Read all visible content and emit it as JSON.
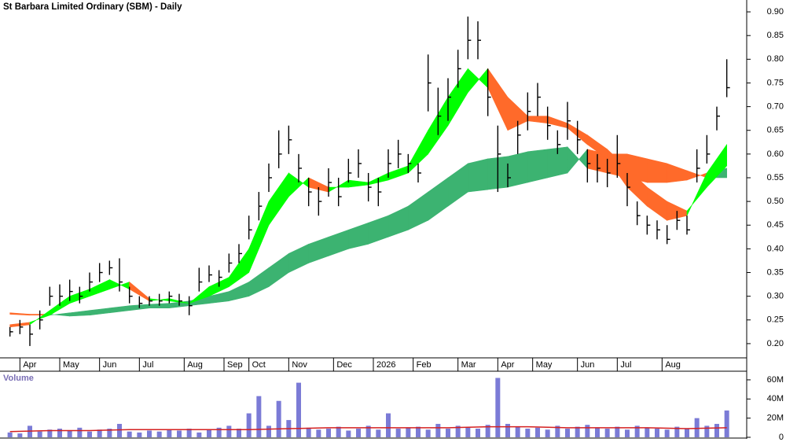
{
  "chart_data": [
    {
      "type": "ohlc",
      "title": "St Barbara Limited Ordinary (SBM) - Daily",
      "color": "#000000",
      "x": [
        0,
        1,
        2,
        3,
        4,
        5,
        6,
        7,
        8,
        9,
        10,
        11,
        12,
        13,
        14,
        15,
        16,
        17,
        18,
        19,
        20,
        21,
        22,
        23,
        24,
        25,
        26,
        27,
        28,
        29,
        30,
        31,
        32,
        33,
        34,
        35,
        36,
        37,
        38,
        39,
        40,
        41,
        42,
        43,
        44,
        45,
        46,
        47,
        48,
        49,
        50,
        51,
        52,
        53,
        54,
        55,
        56,
        57,
        58,
        59,
        60,
        61,
        62,
        63,
        64,
        65,
        66,
        67,
        68,
        69,
        70,
        71,
        72
      ],
      "high": [
        0.235,
        0.25,
        0.24,
        0.27,
        0.32,
        0.325,
        0.335,
        0.32,
        0.35,
        0.37,
        0.375,
        0.38,
        0.32,
        0.3,
        0.3,
        0.305,
        0.31,
        0.305,
        0.3,
        0.36,
        0.365,
        0.355,
        0.39,
        0.41,
        0.47,
        0.52,
        0.58,
        0.65,
        0.66,
        0.6,
        0.55,
        0.53,
        0.57,
        0.55,
        0.59,
        0.61,
        0.56,
        0.55,
        0.61,
        0.63,
        0.6,
        0.58,
        0.81,
        0.74,
        0.76,
        0.82,
        0.89,
        0.88,
        0.78,
        0.66,
        0.58,
        0.67,
        0.73,
        0.75,
        0.7,
        0.65,
        0.71,
        0.67,
        0.61,
        0.6,
        0.59,
        0.64,
        0.56,
        0.5,
        0.47,
        0.46,
        0.45,
        0.48,
        0.47,
        0.61,
        0.64,
        0.7,
        0.8
      ],
      "low": [
        0.215,
        0.22,
        0.195,
        0.23,
        0.28,
        0.28,
        0.29,
        0.285,
        0.31,
        0.33,
        0.345,
        0.31,
        0.285,
        0.275,
        0.28,
        0.28,
        0.285,
        0.28,
        0.26,
        0.31,
        0.33,
        0.32,
        0.35,
        0.37,
        0.42,
        0.46,
        0.52,
        0.57,
        0.6,
        0.54,
        0.49,
        0.47,
        0.51,
        0.49,
        0.54,
        0.55,
        0.5,
        0.49,
        0.55,
        0.57,
        0.56,
        0.54,
        0.69,
        0.64,
        0.67,
        0.74,
        0.8,
        0.8,
        0.68,
        0.52,
        0.53,
        0.6,
        0.65,
        0.68,
        0.63,
        0.6,
        0.63,
        0.6,
        0.54,
        0.54,
        0.53,
        0.55,
        0.49,
        0.45,
        0.43,
        0.42,
        0.41,
        0.44,
        0.43,
        0.54,
        0.58,
        0.65,
        0.72
      ],
      "close": [
        0.225,
        0.235,
        0.22,
        0.25,
        0.3,
        0.3,
        0.31,
        0.3,
        0.33,
        0.35,
        0.36,
        0.33,
        0.3,
        0.285,
        0.29,
        0.29,
        0.3,
        0.29,
        0.28,
        0.33,
        0.345,
        0.34,
        0.37,
        0.39,
        0.44,
        0.49,
        0.55,
        0.6,
        0.63,
        0.57,
        0.52,
        0.5,
        0.54,
        0.51,
        0.56,
        0.58,
        0.53,
        0.52,
        0.58,
        0.6,
        0.58,
        0.56,
        0.75,
        0.68,
        0.72,
        0.78,
        0.84,
        0.84,
        0.72,
        0.6,
        0.55,
        0.64,
        0.69,
        0.72,
        0.66,
        0.62,
        0.67,
        0.63,
        0.58,
        0.57,
        0.56,
        0.58,
        0.53,
        0.47,
        0.45,
        0.44,
        0.42,
        0.46,
        0.44,
        0.57,
        0.6,
        0.68,
        0.74
      ],
      "bands": [
        {
          "up_color": "#3cb371",
          "down_color": "#ff6a2a",
          "x": [
            0,
            2,
            4,
            6,
            8,
            10,
            12,
            14,
            16,
            18,
            20,
            22,
            24,
            26,
            28,
            30,
            32,
            34,
            36,
            38,
            40,
            42,
            44,
            46,
            48,
            50,
            52,
            54,
            56,
            58,
            60,
            62,
            64,
            66,
            68,
            70,
            72
          ],
          "lead": [
            0.262,
            0.26,
            0.26,
            0.265,
            0.27,
            0.275,
            0.28,
            0.283,
            0.285,
            0.29,
            0.3,
            0.31,
            0.33,
            0.36,
            0.39,
            0.41,
            0.425,
            0.44,
            0.455,
            0.47,
            0.49,
            0.52,
            0.55,
            0.58,
            0.59,
            0.595,
            0.605,
            0.61,
            0.615,
            0.57,
            0.56,
            0.55,
            0.54,
            0.54,
            0.545,
            0.56,
            0.57
          ],
          "lag": [
            0.265,
            0.262,
            0.262,
            0.258,
            0.26,
            0.265,
            0.27,
            0.275,
            0.275,
            0.28,
            0.285,
            0.29,
            0.3,
            0.32,
            0.35,
            0.37,
            0.385,
            0.4,
            0.41,
            0.425,
            0.44,
            0.46,
            0.49,
            0.52,
            0.525,
            0.53,
            0.54,
            0.55,
            0.56,
            0.61,
            0.6,
            0.6,
            0.59,
            0.58,
            0.565,
            0.55,
            0.55
          ]
        },
        {
          "up_color": "#00ff00",
          "down_color": "#ff6a2a",
          "x": [
            0,
            2,
            4,
            6,
            8,
            10,
            12,
            14,
            16,
            18,
            20,
            22,
            24,
            26,
            28,
            30,
            32,
            34,
            36,
            38,
            40,
            42,
            44,
            46,
            48,
            50,
            52,
            54,
            56,
            58,
            60,
            62,
            64,
            66,
            68,
            70,
            72
          ],
          "lead": [
            0.235,
            0.24,
            0.27,
            0.3,
            0.315,
            0.335,
            0.315,
            0.29,
            0.295,
            0.285,
            0.32,
            0.34,
            0.4,
            0.5,
            0.56,
            0.53,
            0.52,
            0.545,
            0.54,
            0.56,
            0.575,
            0.65,
            0.72,
            0.78,
            0.74,
            0.65,
            0.67,
            0.665,
            0.655,
            0.62,
            0.59,
            0.53,
            0.49,
            0.46,
            0.47,
            0.56,
            0.62
          ],
          "lag": [
            0.24,
            0.245,
            0.26,
            0.285,
            0.3,
            0.315,
            0.33,
            0.295,
            0.29,
            0.285,
            0.3,
            0.32,
            0.35,
            0.45,
            0.51,
            0.55,
            0.53,
            0.53,
            0.535,
            0.545,
            0.56,
            0.6,
            0.66,
            0.73,
            0.78,
            0.72,
            0.68,
            0.68,
            0.665,
            0.64,
            0.61,
            0.57,
            0.53,
            0.5,
            0.48,
            0.53,
            0.575
          ]
        }
      ],
      "xlim": [
        -1,
        74
      ],
      "ylim": [
        0.17,
        0.925
      ],
      "xticks": [
        {
          "value": 1,
          "label": "Apr"
        },
        {
          "value": 5,
          "label": "May"
        },
        {
          "value": 9,
          "label": "Jun"
        },
        {
          "value": 13,
          "label": "Jul"
        },
        {
          "value": 17.5,
          "label": "Aug"
        },
        {
          "value": 21.5,
          "label": "Sep"
        },
        {
          "value": 24,
          "label": "Oct"
        },
        {
          "value": 28,
          "label": "Nov"
        },
        {
          "value": 32.5,
          "label": "Dec"
        },
        {
          "value": 36.5,
          "label": "2026"
        },
        {
          "value": 40.5,
          "label": "Feb"
        },
        {
          "value": 45,
          "label": "Mar"
        },
        {
          "value": 49,
          "label": "Apr"
        },
        {
          "value": 52.5,
          "label": "May"
        },
        {
          "value": 57,
          "label": "Jun"
        },
        {
          "value": 61,
          "label": "Jul"
        },
        {
          "value": 65.5,
          "label": "Aug"
        }
      ],
      "yticks": [
        {
          "value": 0.2,
          "label": "0.20"
        },
        {
          "value": 0.25,
          "label": "0.25"
        },
        {
          "value": 0.3,
          "label": "0.30"
        },
        {
          "value": 0.35,
          "label": "0.35"
        },
        {
          "value": 0.4,
          "label": "0.40"
        },
        {
          "value": 0.45,
          "label": "0.45"
        },
        {
          "value": 0.5,
          "label": "0.50"
        },
        {
          "value": 0.55,
          "label": "0.55"
        },
        {
          "value": 0.6,
          "label": "0.60"
        },
        {
          "value": 0.65,
          "label": "0.65"
        },
        {
          "value": 0.7,
          "label": "0.70"
        },
        {
          "value": 0.75,
          "label": "0.75"
        },
        {
          "value": 0.8,
          "label": "0.80"
        },
        {
          "value": 0.85,
          "label": "0.85"
        },
        {
          "value": 0.9,
          "label": "0.90"
        }
      ]
    },
    {
      "type": "bar",
      "title": "Volume",
      "color": "#7b7bd6",
      "x": [
        0,
        1,
        2,
        3,
        4,
        5,
        6,
        7,
        8,
        9,
        10,
        11,
        12,
        13,
        14,
        15,
        16,
        17,
        18,
        19,
        20,
        21,
        22,
        23,
        24,
        25,
        26,
        27,
        28,
        29,
        30,
        31,
        32,
        33,
        34,
        35,
        36,
        37,
        38,
        39,
        40,
        41,
        42,
        43,
        44,
        45,
        46,
        47,
        48,
        49,
        50,
        51,
        52,
        53,
        54,
        55,
        56,
        57,
        58,
        59,
        60,
        61,
        62,
        63,
        64,
        65,
        66,
        67,
        68,
        69,
        70,
        71,
        72
      ],
      "values": [
        5,
        4,
        12,
        6,
        8,
        9,
        7,
        10,
        6,
        8,
        9,
        14,
        6,
        5,
        7,
        6,
        8,
        7,
        9,
        5,
        8,
        10,
        12,
        9,
        25,
        43,
        12,
        38,
        18,
        57,
        10,
        8,
        9,
        11,
        7,
        9,
        12,
        8,
        25,
        9,
        10,
        11,
        8,
        14,
        9,
        12,
        10,
        9,
        13,
        62,
        14,
        11,
        9,
        10,
        8,
        12,
        9,
        11,
        13,
        10,
        9,
        11,
        8,
        12,
        10,
        9,
        8,
        11,
        9,
        20,
        12,
        14,
        28
      ],
      "ma": {
        "color": "#d42020",
        "x": [
          0,
          4,
          8,
          12,
          16,
          20,
          24,
          28,
          32,
          36,
          40,
          44,
          48,
          52,
          56,
          60,
          64,
          68,
          72
        ],
        "values": [
          6,
          7,
          7,
          8,
          8,
          8,
          8,
          9,
          10,
          10,
          10,
          10,
          11,
          11,
          10,
          10,
          10,
          9,
          10
        ]
      },
      "xlim": [
        -1,
        74
      ],
      "ylim": [
        0,
        69
      ],
      "yticks": [
        0,
        {
          "value": 20,
          "label": "20M"
        },
        {
          "value": 40,
          "label": "40M"
        },
        {
          "value": 60,
          "label": "60M"
        }
      ]
    }
  ]
}
